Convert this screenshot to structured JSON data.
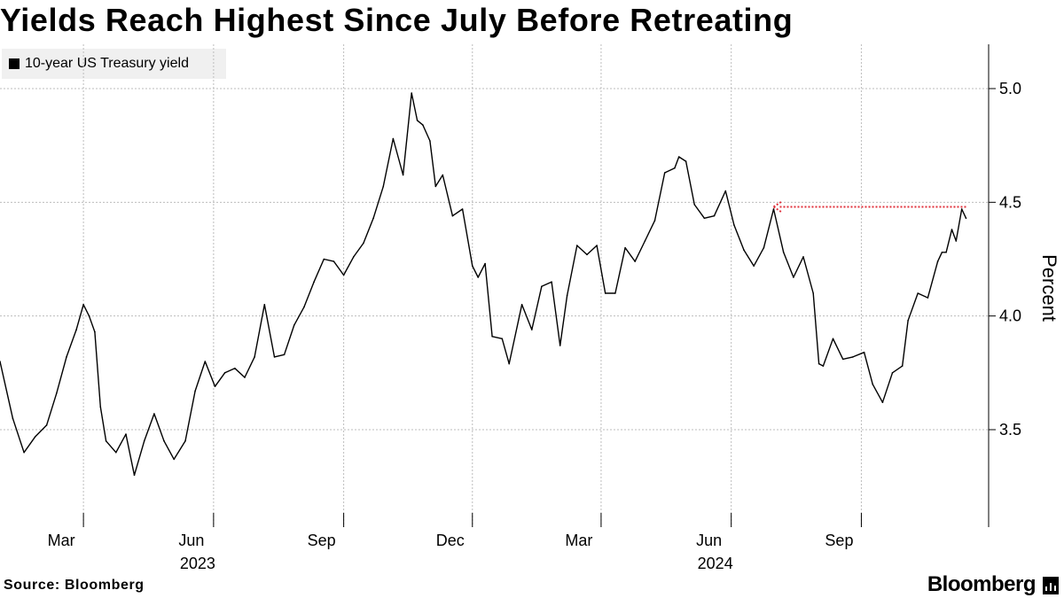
{
  "title": "Yields Reach Highest Since July Before Retreating",
  "source": "Source: Bloomberg",
  "brand": "Bloomberg",
  "brand_icon": "bloomberg-chart-icon",
  "colors": {
    "line": "#000000",
    "grid": "#bdbdbd",
    "annotation": "#e0303b",
    "legend_bg": "#f0f0f0"
  },
  "chart_data": {
    "type": "line",
    "title": "Yields Reach Highest Since July Before Retreating",
    "series": [
      {
        "name": "10-year US Treasury yield"
      }
    ],
    "ylabel": "Percent",
    "xlabel": "",
    "ylim": [
      3.1,
      5.2
    ],
    "xlim": [
      "2023-01-01",
      "2024-10-31"
    ],
    "y_ticks": [
      3.5,
      4.0,
      4.5,
      5.0
    ],
    "y_tick_labels": [
      "3.5",
      "4.0",
      "4.5",
      "5.0"
    ],
    "x_ticks": [
      {
        "date": "2023-03-01",
        "label": "Mar"
      },
      {
        "date": "2023-06-01",
        "label": "Jun"
      },
      {
        "date": "2023-09-01",
        "label": "Sep"
      },
      {
        "date": "2023-12-01",
        "label": "Dec"
      },
      {
        "date": "2024-03-01",
        "label": "Mar"
      },
      {
        "date": "2024-06-01",
        "label": "Jun"
      },
      {
        "date": "2024-09-01",
        "label": "Sep"
      }
    ],
    "year_labels": [
      {
        "date": "2023-06-01",
        "label": "2023"
      },
      {
        "date": "2024-06-01",
        "label": "2024"
      }
    ],
    "points": [
      [
        "2023-01-01",
        3.8
      ],
      [
        "2023-01-10",
        3.55
      ],
      [
        "2023-01-18",
        3.4
      ],
      [
        "2023-01-26",
        3.47
      ],
      [
        "2023-02-03",
        3.52
      ],
      [
        "2023-02-10",
        3.66
      ],
      [
        "2023-02-17",
        3.82
      ],
      [
        "2023-02-24",
        3.94
      ],
      [
        "2023-03-01",
        4.05
      ],
      [
        "2023-03-05",
        4.0
      ],
      [
        "2023-03-09",
        3.93
      ],
      [
        "2023-03-13",
        3.6
      ],
      [
        "2023-03-17",
        3.45
      ],
      [
        "2023-03-24",
        3.4
      ],
      [
        "2023-03-31",
        3.48
      ],
      [
        "2023-04-06",
        3.3
      ],
      [
        "2023-04-13",
        3.45
      ],
      [
        "2023-04-20",
        3.57
      ],
      [
        "2023-04-27",
        3.45
      ],
      [
        "2023-05-04",
        3.37
      ],
      [
        "2023-05-12",
        3.45
      ],
      [
        "2023-05-19",
        3.67
      ],
      [
        "2023-05-26",
        3.8
      ],
      [
        "2023-06-02",
        3.69
      ],
      [
        "2023-06-09",
        3.75
      ],
      [
        "2023-06-16",
        3.77
      ],
      [
        "2023-06-23",
        3.73
      ],
      [
        "2023-06-30",
        3.82
      ],
      [
        "2023-07-07",
        4.05
      ],
      [
        "2023-07-14",
        3.82
      ],
      [
        "2023-07-21",
        3.83
      ],
      [
        "2023-07-28",
        3.96
      ],
      [
        "2023-08-04",
        4.04
      ],
      [
        "2023-08-11",
        4.15
      ],
      [
        "2023-08-18",
        4.25
      ],
      [
        "2023-08-25",
        4.24
      ],
      [
        "2023-09-01",
        4.18
      ],
      [
        "2023-09-08",
        4.26
      ],
      [
        "2023-09-15",
        4.32
      ],
      [
        "2023-09-22",
        4.43
      ],
      [
        "2023-09-29",
        4.57
      ],
      [
        "2023-10-06",
        4.78
      ],
      [
        "2023-10-13",
        4.62
      ],
      [
        "2023-10-19",
        4.98
      ],
      [
        "2023-10-23",
        4.86
      ],
      [
        "2023-10-27",
        4.84
      ],
      [
        "2023-11-01",
        4.77
      ],
      [
        "2023-11-05",
        4.57
      ],
      [
        "2023-11-10",
        4.62
      ],
      [
        "2023-11-17",
        4.44
      ],
      [
        "2023-11-24",
        4.47
      ],
      [
        "2023-12-01",
        4.22
      ],
      [
        "2023-12-05",
        4.17
      ],
      [
        "2023-12-10",
        4.23
      ],
      [
        "2023-12-15",
        3.91
      ],
      [
        "2023-12-22",
        3.9
      ],
      [
        "2023-12-27",
        3.79
      ],
      [
        "2024-01-05",
        4.05
      ],
      [
        "2024-01-12",
        3.94
      ],
      [
        "2024-01-19",
        4.13
      ],
      [
        "2024-01-26",
        4.15
      ],
      [
        "2024-02-01",
        3.87
      ],
      [
        "2024-02-06",
        4.09
      ],
      [
        "2024-02-13",
        4.31
      ],
      [
        "2024-02-20",
        4.27
      ],
      [
        "2024-02-27",
        4.31
      ],
      [
        "2024-03-04",
        4.1
      ],
      [
        "2024-03-11",
        4.1
      ],
      [
        "2024-03-18",
        4.3
      ],
      [
        "2024-03-25",
        4.24
      ],
      [
        "2024-04-01",
        4.33
      ],
      [
        "2024-04-08",
        4.42
      ],
      [
        "2024-04-15",
        4.63
      ],
      [
        "2024-04-22",
        4.65
      ],
      [
        "2024-04-25",
        4.7
      ],
      [
        "2024-04-30",
        4.68
      ],
      [
        "2024-05-06",
        4.49
      ],
      [
        "2024-05-13",
        4.43
      ],
      [
        "2024-05-20",
        4.44
      ],
      [
        "2024-05-28",
        4.55
      ],
      [
        "2024-06-03",
        4.4
      ],
      [
        "2024-06-10",
        4.29
      ],
      [
        "2024-06-17",
        4.22
      ],
      [
        "2024-06-24",
        4.3
      ],
      [
        "2024-07-01",
        4.47
      ],
      [
        "2024-07-08",
        4.28
      ],
      [
        "2024-07-15",
        4.17
      ],
      [
        "2024-07-22",
        4.26
      ],
      [
        "2024-07-29",
        4.1
      ],
      [
        "2024-08-02",
        3.79
      ],
      [
        "2024-08-05",
        3.78
      ],
      [
        "2024-08-12",
        3.9
      ],
      [
        "2024-08-19",
        3.81
      ],
      [
        "2024-08-26",
        3.82
      ],
      [
        "2024-09-03",
        3.84
      ],
      [
        "2024-09-09",
        3.7
      ],
      [
        "2024-09-16",
        3.62
      ],
      [
        "2024-09-23",
        3.75
      ],
      [
        "2024-09-30",
        3.78
      ],
      [
        "2024-10-04",
        3.98
      ],
      [
        "2024-10-11",
        4.1
      ],
      [
        "2024-10-18",
        4.08
      ],
      [
        "2024-10-25",
        4.24
      ],
      [
        "2024-10-28",
        4.28
      ],
      [
        "2024-10-31",
        4.28
      ],
      [
        "2024-11-04",
        4.38
      ],
      [
        "2024-11-07",
        4.33
      ],
      [
        "2024-11-11",
        4.47
      ],
      [
        "2024-11-14",
        4.43
      ]
    ],
    "annotation": {
      "type": "arrow",
      "y": 4.48,
      "from": "2024-11-14",
      "to": "2024-07-01",
      "style": "dotted",
      "color": "#e0303b"
    }
  }
}
